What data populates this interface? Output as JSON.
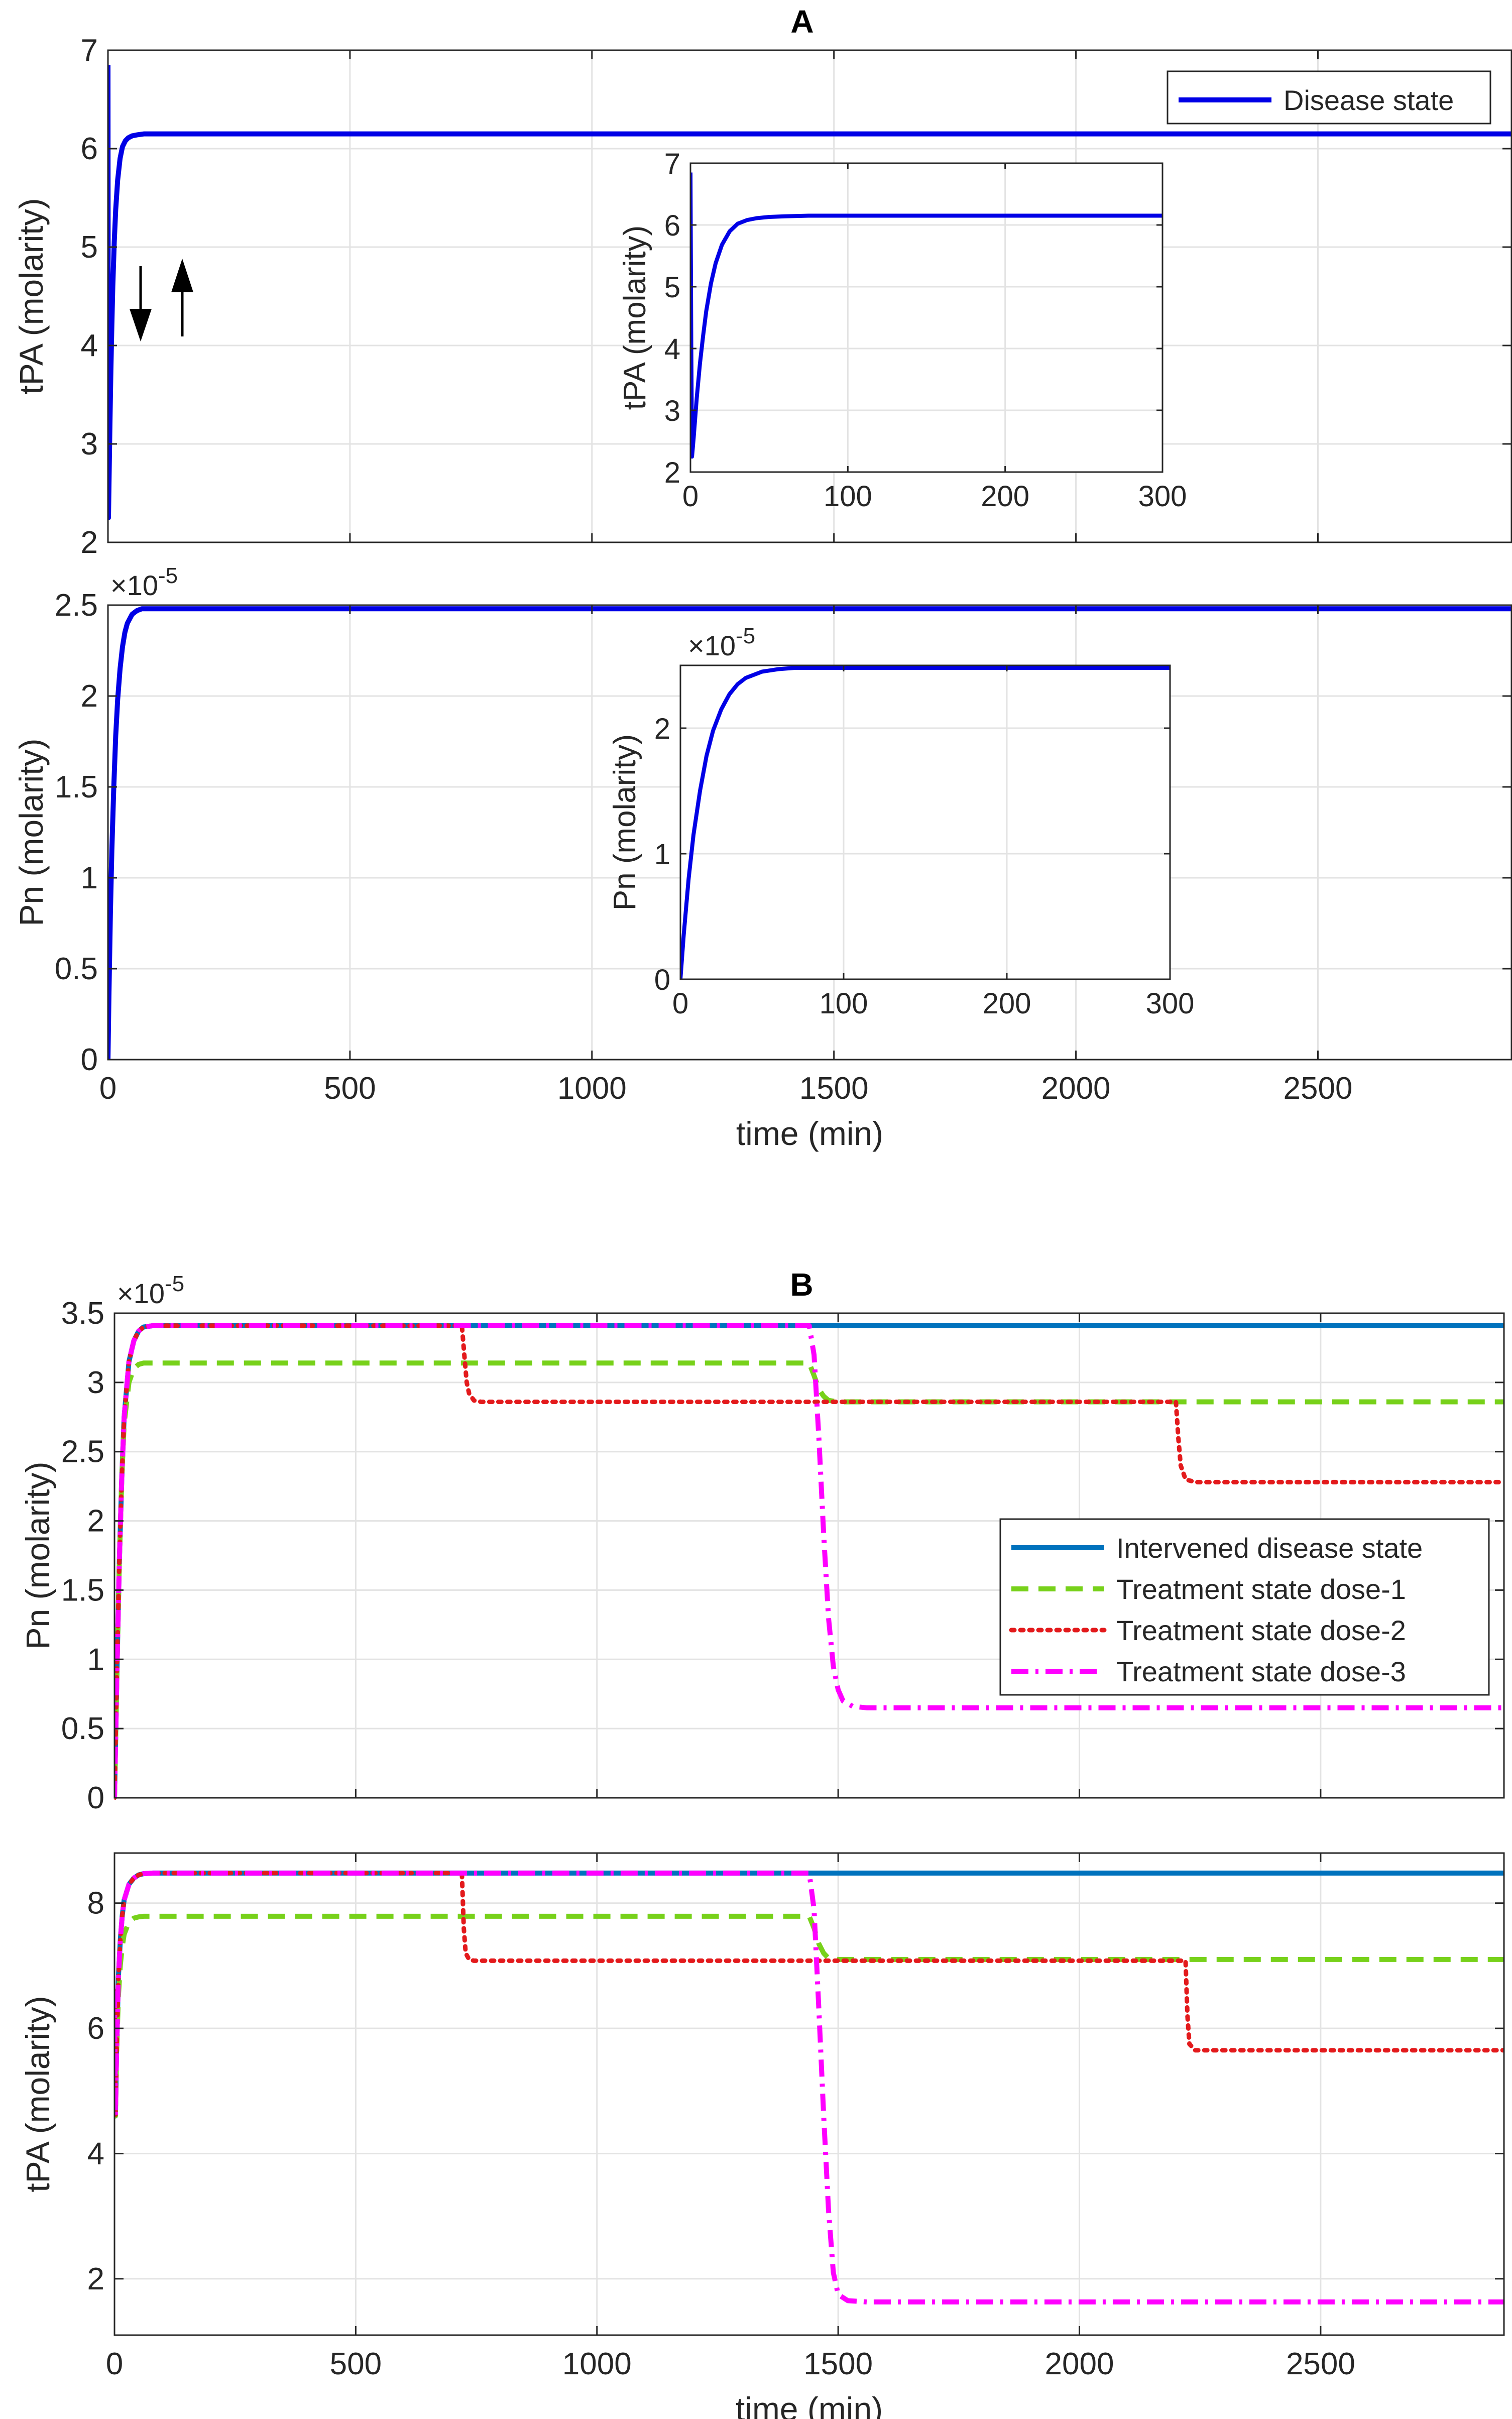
{
  "panel_titles": {
    "a": "A",
    "b": "B"
  },
  "chart_data": [
    {
      "id": "A-top",
      "type": "line",
      "title": "A",
      "xlabel": "",
      "ylabel": "tPA (molarity)",
      "xlim": [
        0,
        2900
      ],
      "ylim": [
        2,
        7
      ],
      "xticks": [
        0,
        500,
        1000,
        1500,
        2000,
        2500
      ],
      "yticks": [
        2,
        3,
        4,
        5,
        6,
        7
      ],
      "show_xticklabels": false,
      "grid": true,
      "legend_position": "top-right",
      "annotations": [
        "down-arrow",
        "up-arrow"
      ],
      "series": [
        {
          "name": "Disease state",
          "color": "#0000e6",
          "style": "solid",
          "x": [
            0,
            0.5,
            1,
            2,
            4,
            6,
            8,
            10,
            13,
            16,
            20,
            25,
            30,
            36,
            42,
            50,
            60,
            75,
            100,
            200,
            500,
            1000,
            1500,
            2000,
            2500,
            2900
          ],
          "y": [
            6.85,
            4.0,
            2.25,
            2.55,
            3.2,
            3.75,
            4.2,
            4.6,
            5.05,
            5.38,
            5.68,
            5.9,
            6.02,
            6.08,
            6.11,
            6.13,
            6.14,
            6.15,
            6.15,
            6.15,
            6.15,
            6.15,
            6.15,
            6.15,
            6.15,
            6.15
          ]
        }
      ],
      "inset": {
        "xlim": [
          0,
          300
        ],
        "ylim": [
          2,
          7
        ],
        "xticks": [
          0,
          100,
          200,
          300
        ],
        "yticks": [
          2,
          3,
          4,
          5,
          6,
          7
        ],
        "ylabel": "tPA (molarity)",
        "x": [
          0,
          0.5,
          1,
          2,
          4,
          6,
          8,
          10,
          13,
          16,
          20,
          25,
          30,
          36,
          42,
          50,
          60,
          75,
          100,
          150,
          200,
          250,
          300
        ],
        "y": [
          6.85,
          4.0,
          2.25,
          2.55,
          3.2,
          3.75,
          4.2,
          4.6,
          5.05,
          5.38,
          5.68,
          5.9,
          6.02,
          6.08,
          6.11,
          6.13,
          6.14,
          6.15,
          6.15,
          6.15,
          6.15,
          6.15,
          6.15
        ]
      }
    },
    {
      "id": "A-bottom",
      "type": "line",
      "xlabel": "time (min)",
      "ylabel": "Pn (molarity)",
      "exponent_label": "×10",
      "exponent_power": "-5",
      "xlim": [
        0,
        2900
      ],
      "ylim": [
        0,
        2.5
      ],
      "xticks": [
        0,
        500,
        1000,
        1500,
        2000,
        2500
      ],
      "yticks": [
        0,
        0.5,
        1,
        1.5,
        2,
        2.5
      ],
      "grid": true,
      "series": [
        {
          "name": "Disease state",
          "color": "#0000e6",
          "style": "solid",
          "x": [
            0,
            2,
            5,
            8,
            12,
            16,
            20,
            25,
            30,
            35,
            40,
            50,
            60,
            70,
            80,
            100,
            150,
            500,
            1000,
            1500,
            2000,
            2500,
            2900
          ],
          "y": [
            0,
            0.35,
            0.8,
            1.15,
            1.5,
            1.78,
            1.98,
            2.15,
            2.27,
            2.35,
            2.4,
            2.45,
            2.47,
            2.48,
            2.48,
            2.48,
            2.48,
            2.48,
            2.48,
            2.48,
            2.48,
            2.48,
            2.48
          ]
        }
      ],
      "inset": {
        "xlim": [
          0,
          300
        ],
        "ylim": [
          0,
          2.5
        ],
        "xticks": [
          0,
          100,
          200,
          300
        ],
        "yticks": [
          0,
          1,
          2
        ],
        "ylabel": "Pn (molarity)",
        "exponent_label": "×10",
        "exponent_power": "-5",
        "x": [
          0,
          2,
          5,
          8,
          12,
          16,
          20,
          25,
          30,
          35,
          40,
          50,
          60,
          70,
          80,
          100,
          150,
          200,
          250,
          300
        ],
        "y": [
          0,
          0.35,
          0.8,
          1.15,
          1.5,
          1.78,
          1.98,
          2.15,
          2.27,
          2.35,
          2.4,
          2.45,
          2.47,
          2.48,
          2.48,
          2.48,
          2.48,
          2.48,
          2.48,
          2.48
        ]
      }
    },
    {
      "id": "B-top",
      "type": "line",
      "title": "B",
      "xlabel": "",
      "ylabel": "Pn (molarity)",
      "exponent_label": "×10",
      "exponent_power": "-5",
      "xlim": [
        0,
        2880
      ],
      "ylim": [
        0,
        3.5
      ],
      "xticks": [
        0,
        500,
        1000,
        1500,
        2000,
        2500
      ],
      "yticks": [
        0,
        0.5,
        1,
        1.5,
        2,
        2.5,
        3,
        3.5
      ],
      "show_xticklabels": false,
      "grid": true,
      "legend_position": "center-right",
      "series": [
        {
          "name": "Intervened disease state",
          "color": "#0072bd",
          "style": "solid",
          "x": [
            0,
            5,
            10,
            15,
            20,
            30,
            40,
            50,
            60,
            80,
            2880
          ],
          "y": [
            0,
            0.9,
            1.7,
            2.3,
            2.75,
            3.15,
            3.3,
            3.37,
            3.4,
            3.41,
            3.41
          ]
        },
        {
          "name": "Treatment state dose-1",
          "color": "#77d11a",
          "style": "dashed",
          "x": [
            0,
            5,
            10,
            15,
            20,
            30,
            40,
            50,
            60,
            1440,
            1450,
            1460,
            1470,
            1480,
            1500,
            2880
          ],
          "y": [
            0,
            0.9,
            1.7,
            2.3,
            2.7,
            3.0,
            3.1,
            3.13,
            3.14,
            3.14,
            3.05,
            2.95,
            2.9,
            2.87,
            2.86,
            2.86
          ]
        },
        {
          "name": "Treatment state dose-2",
          "color": "#e31a1c",
          "style": "dotted",
          "x": [
            0,
            5,
            10,
            15,
            20,
            30,
            40,
            50,
            60,
            80,
            720,
            725,
            730,
            735,
            745,
            760,
            2200,
            2205,
            2210,
            2220,
            2240,
            2880
          ],
          "y": [
            0,
            0.9,
            1.7,
            2.3,
            2.75,
            3.15,
            3.3,
            3.37,
            3.4,
            3.41,
            3.41,
            3.2,
            3.0,
            2.92,
            2.87,
            2.86,
            2.86,
            2.6,
            2.4,
            2.3,
            2.28,
            2.28
          ]
        },
        {
          "name": "Treatment state dose-3",
          "color": "#ff00ff",
          "style": "dashdot",
          "x": [
            0,
            5,
            10,
            15,
            20,
            30,
            40,
            50,
            60,
            80,
            1440,
            1450,
            1460,
            1470,
            1480,
            1490,
            1500,
            1510,
            1530,
            1560,
            2880
          ],
          "y": [
            0,
            0.9,
            1.7,
            2.3,
            2.75,
            3.15,
            3.3,
            3.37,
            3.4,
            3.41,
            3.41,
            3.2,
            2.6,
            1.9,
            1.3,
            0.95,
            0.78,
            0.7,
            0.66,
            0.65,
            0.65
          ]
        }
      ]
    },
    {
      "id": "B-bottom",
      "type": "line",
      "xlabel": "time (min)",
      "ylabel": "tPA (molarity)",
      "xlim": [
        0,
        2880
      ],
      "ylim": [
        1.1,
        8.8
      ],
      "xticks": [
        0,
        500,
        1000,
        1500,
        2000,
        2500
      ],
      "yticks": [
        2,
        4,
        6,
        8
      ],
      "grid": true,
      "series": [
        {
          "name": "Intervened disease state",
          "color": "#0072bd",
          "style": "solid",
          "x": [
            0,
            2,
            4,
            8,
            12,
            16,
            20,
            30,
            40,
            50,
            60,
            80,
            2880
          ],
          "y": [
            6.6,
            4.6,
            5.5,
            6.8,
            7.4,
            7.8,
            8.05,
            8.3,
            8.4,
            8.45,
            8.47,
            8.48,
            8.48
          ]
        },
        {
          "name": "Treatment state dose-1",
          "color": "#77d11a",
          "style": "dashed",
          "x": [
            0,
            2,
            4,
            8,
            12,
            16,
            20,
            30,
            40,
            50,
            60,
            1440,
            1450,
            1460,
            1470,
            1480,
            1500,
            2880
          ],
          "y": [
            6.6,
            4.6,
            5.5,
            6.5,
            7.0,
            7.3,
            7.5,
            7.7,
            7.76,
            7.78,
            7.79,
            7.79,
            7.6,
            7.35,
            7.2,
            7.12,
            7.1,
            7.1
          ]
        },
        {
          "name": "Treatment state dose-2",
          "color": "#e31a1c",
          "style": "dotted",
          "x": [
            0,
            2,
            4,
            8,
            12,
            16,
            20,
            30,
            40,
            50,
            60,
            80,
            720,
            724,
            728,
            735,
            745,
            760,
            2220,
            2224,
            2228,
            2240,
            2880
          ],
          "y": [
            6.6,
            4.6,
            5.5,
            6.8,
            7.4,
            7.8,
            8.05,
            8.3,
            8.4,
            8.45,
            8.47,
            8.48,
            8.48,
            7.6,
            7.2,
            7.1,
            7.08,
            7.08,
            7.08,
            6.2,
            5.75,
            5.65,
            5.65
          ]
        },
        {
          "name": "Treatment state dose-3",
          "color": "#ff00ff",
          "style": "dashdot",
          "x": [
            0,
            2,
            4,
            8,
            12,
            16,
            20,
            30,
            40,
            50,
            60,
            80,
            1440,
            1450,
            1460,
            1470,
            1480,
            1490,
            1500,
            1520,
            1560,
            2880
          ],
          "y": [
            6.6,
            4.6,
            5.5,
            6.8,
            7.4,
            7.8,
            8.05,
            8.3,
            8.4,
            8.45,
            8.47,
            8.48,
            8.48,
            7.9,
            6.3,
            4.6,
            3.1,
            2.1,
            1.75,
            1.65,
            1.63,
            1.63
          ]
        }
      ]
    }
  ]
}
